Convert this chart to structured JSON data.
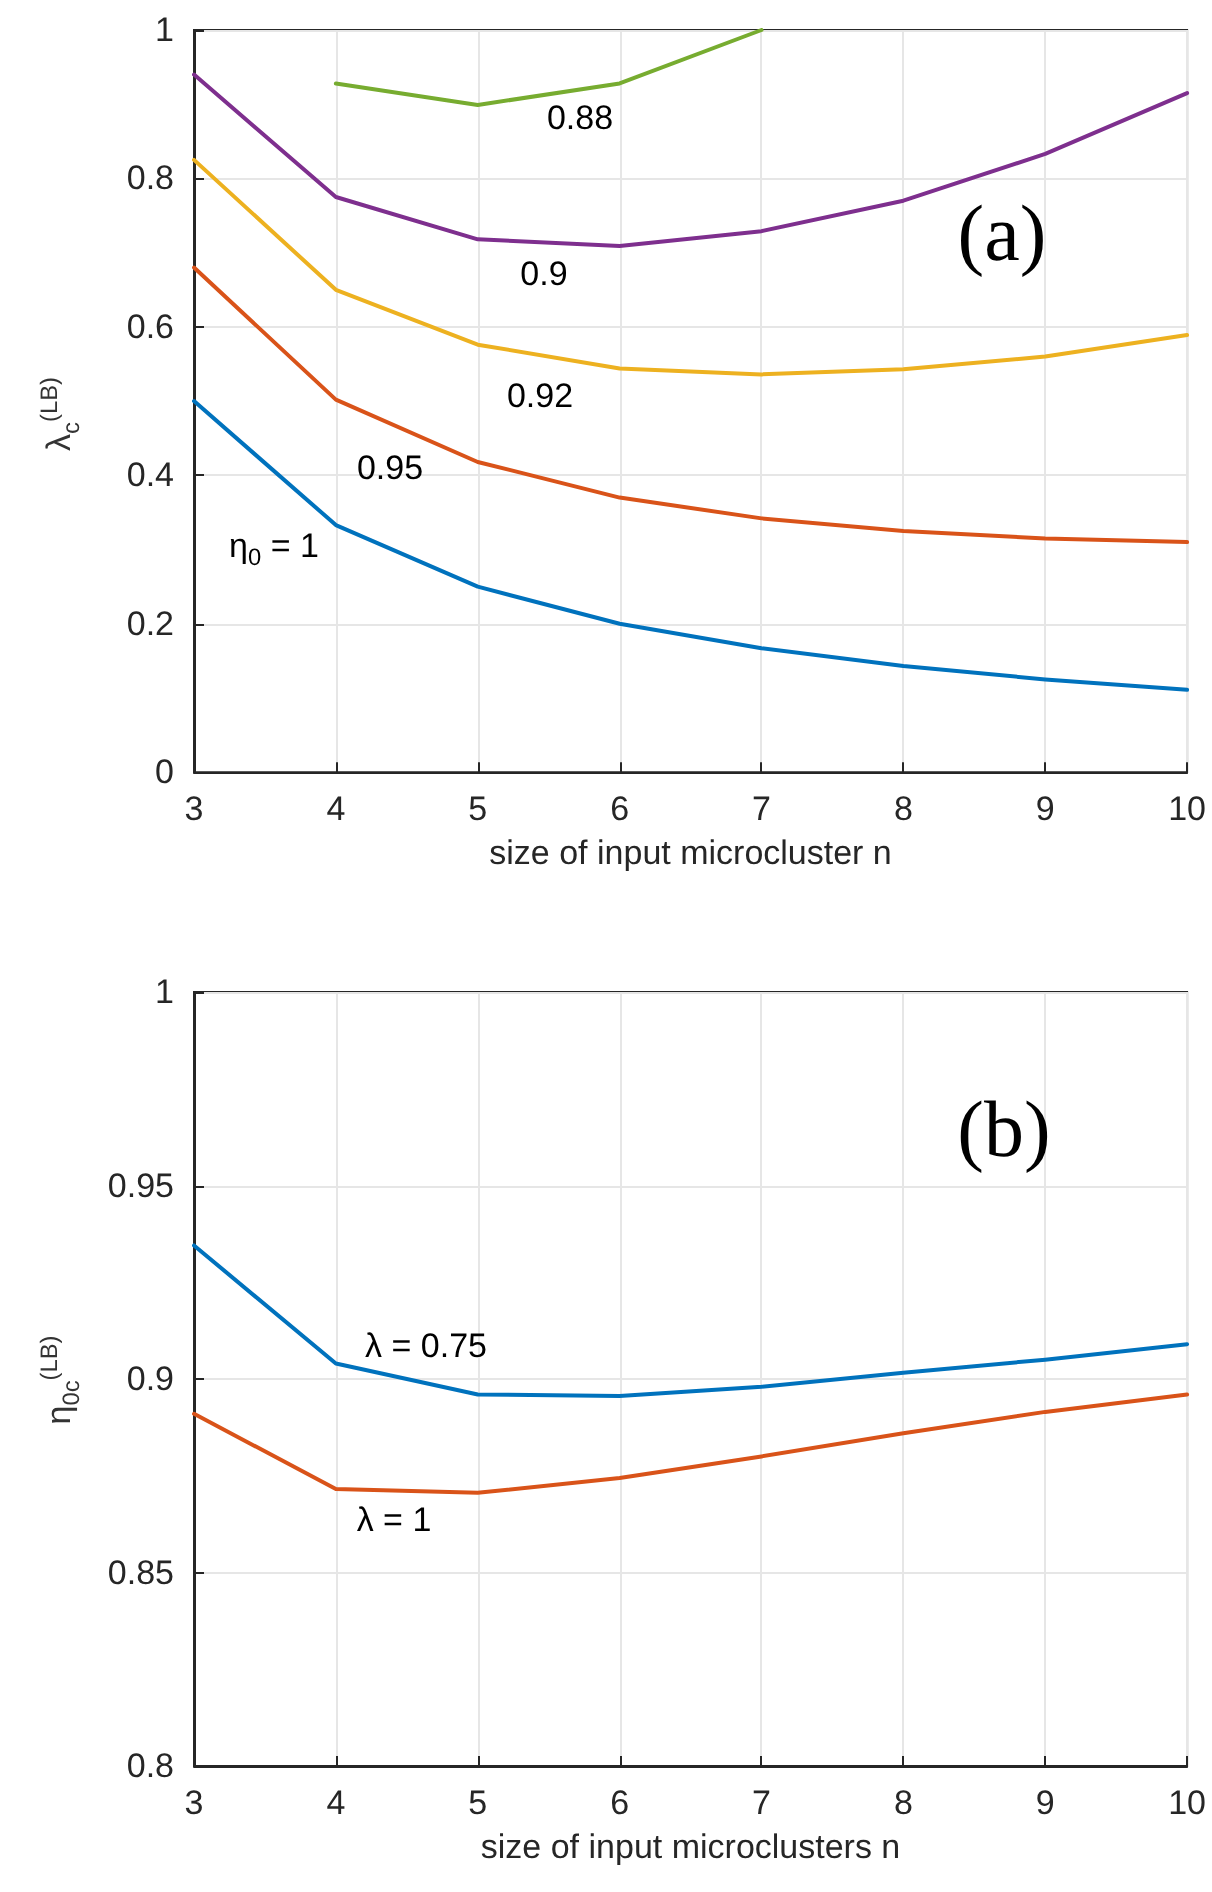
{
  "chart_data": [
    {
      "type": "line",
      "xlabel": "size of input microcluster n",
      "ylabel": "λ$_{c}$$^{(LB)}$",
      "x": [
        3,
        4,
        5,
        6,
        7,
        8,
        9,
        10
      ],
      "xlim": [
        3,
        10
      ],
      "xticks": [
        3,
        4,
        5,
        6,
        7,
        8,
        9,
        10
      ],
      "ylim": [
        0,
        1
      ],
      "yticks": [
        0,
        0.2,
        0.4,
        0.6,
        0.8,
        1
      ],
      "grid": true,
      "marker": "none",
      "line_style": "solid",
      "series": [
        {
          "color": "#0072bd",
          "values": [
            0.5,
            0.333,
            0.25,
            0.2,
            0.167,
            0.143,
            0.125,
            0.111
          ]
        },
        {
          "color": "#d95319",
          "values": [
            0.68,
            0.502,
            0.418,
            0.37,
            0.342,
            0.325,
            0.315,
            0.31
          ]
        },
        {
          "color": "#edb120",
          "values": [
            0.825,
            0.65,
            0.576,
            0.544,
            0.536,
            0.543,
            0.56,
            0.589
          ]
        },
        {
          "color": "#7e2f8e",
          "values": [
            0.94,
            0.775,
            0.718,
            0.709,
            0.729,
            0.77,
            0.833,
            0.915
          ]
        },
        {
          "color": "#77ac30",
          "x": [
            4,
            5,
            6,
            7
          ],
          "values": [
            0.928,
            0.899,
            0.928,
            1.0
          ]
        }
      ],
      "annotations": [
        "0.88",
        "0.9",
        "0.92",
        "0.95",
        "η$_{0}$ = 1",
        "(a)"
      ]
    },
    {
      "type": "line",
      "xlabel": "size of input microclusters n",
      "ylabel": "η$_{0c}$$^{(LB)}$",
      "x": [
        3,
        4,
        5,
        6,
        7,
        8,
        9,
        10
      ],
      "xlim": [
        3,
        10
      ],
      "xticks": [
        3,
        4,
        5,
        6,
        7,
        8,
        9,
        10
      ],
      "ylim": [
        0.8,
        1
      ],
      "yticks": [
        0.8,
        0.85,
        0.9,
        0.95,
        1
      ],
      "grid": true,
      "marker": "none",
      "line_style": "solid",
      "series": [
        {
          "color": "#0072bd",
          "values": [
            0.9345,
            0.904,
            0.896,
            0.8956,
            0.898,
            0.9016,
            0.905,
            0.909
          ]
        },
        {
          "color": "#d95319",
          "values": [
            0.891,
            0.8716,
            0.8706,
            0.8744,
            0.88,
            0.886,
            0.8915,
            0.896
          ]
        }
      ],
      "annotations": [
        "λ = 0.75",
        "λ = 1",
        "(b)"
      ]
    }
  ]
}
